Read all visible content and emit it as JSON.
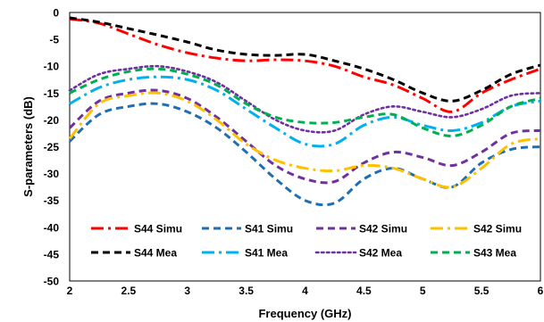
{
  "chart_data": {
    "type": "line",
    "title": "",
    "xlabel": "Frequency (GHz)",
    "ylabel": "S-parameters (dB)",
    "xlim": [
      2,
      6
    ],
    "ylim": [
      -50,
      0
    ],
    "x_ticks": [
      2,
      2.5,
      3,
      3.5,
      4,
      4.5,
      5,
      5.5,
      6
    ],
    "x_tick_labels": [
      "2",
      "2.5",
      "3",
      "3.5",
      "4",
      "4.5",
      "5",
      "5.5",
      "6"
    ],
    "y_ticks": [
      0,
      -5,
      -10,
      -15,
      -20,
      -25,
      -30,
      -35,
      -40,
      -45,
      -50
    ],
    "y_tick_labels": [
      "0",
      "-5",
      "-10",
      "-15",
      "-20",
      "-25",
      "-30",
      "-35",
      "-40",
      "-45",
      "-50"
    ],
    "grid": false,
    "legend_position": "bottom, inside plot, 2 rows x 4 columns",
    "x": [
      2.0,
      2.25,
      2.5,
      2.75,
      3.0,
      3.25,
      3.5,
      3.75,
      4.0,
      4.25,
      4.5,
      4.75,
      5.0,
      5.25,
      5.5,
      5.75,
      6.0
    ],
    "series": [
      {
        "name": "S44 Simu",
        "color": "#ff0000",
        "dash": "dashdot",
        "legend_row": 0,
        "values": [
          -1.2,
          -2.0,
          -4.0,
          -6.0,
          -7.5,
          -8.5,
          -9.0,
          -8.8,
          -9.0,
          -10.0,
          -12.0,
          -13.5,
          -16.0,
          -18.5,
          -15.0,
          -12.5,
          -10.5
        ]
      },
      {
        "name": "S41 Simu",
        "color": "#1f6eb4",
        "dash": "dash",
        "legend_row": 0,
        "values": [
          -24.0,
          -19.0,
          -17.5,
          -17.0,
          -18.5,
          -21.5,
          -26.0,
          -31.0,
          -35.0,
          -35.5,
          -31.0,
          -29.0,
          -31.0,
          -32.5,
          -28.0,
          -25.5,
          -25.0
        ]
      },
      {
        "name": "S42 Simu",
        "color": "#7030a0",
        "dash": "dash",
        "legend_row": 0,
        "values": [
          -21.5,
          -16.5,
          -15.0,
          -14.5,
          -16.0,
          -19.5,
          -24.0,
          -28.5,
          -31.0,
          -31.5,
          -28.0,
          -26.0,
          -27.0,
          -28.5,
          -26.0,
          -22.5,
          -22.0
        ]
      },
      {
        "name": "S42 Simu",
        "color": "#ffc000",
        "dash": "dashdot",
        "legend_row": 0,
        "values": [
          -23.5,
          -17.0,
          -15.5,
          -15.0,
          -16.5,
          -20.0,
          -24.5,
          -27.5,
          -29.0,
          -29.5,
          -28.5,
          -29.0,
          -31.0,
          -32.5,
          -29.0,
          -24.5,
          -23.5
        ]
      },
      {
        "name": "S44 Mea",
        "color": "#000000",
        "dash": "dash",
        "legend_row": 1,
        "values": [
          -1.0,
          -1.8,
          -3.0,
          -4.2,
          -5.5,
          -7.0,
          -7.8,
          -8.0,
          -7.8,
          -9.0,
          -10.5,
          -12.5,
          -15.0,
          -16.5,
          -14.5,
          -11.5,
          -9.8
        ]
      },
      {
        "name": "S41 Mea",
        "color": "#00b0f0",
        "dash": "dashdot",
        "legend_row": 1,
        "values": [
          -17.0,
          -14.0,
          -12.5,
          -12.0,
          -12.5,
          -14.5,
          -18.0,
          -21.5,
          -24.5,
          -24.5,
          -21.0,
          -19.5,
          -21.0,
          -22.0,
          -20.5,
          -17.5,
          -16.5
        ]
      },
      {
        "name": "S42 Mea",
        "color": "#7030a0",
        "dash": "dot",
        "legend_row": 1,
        "values": [
          -14.5,
          -11.5,
          -10.5,
          -10.0,
          -11.0,
          -13.0,
          -16.5,
          -20.0,
          -22.0,
          -22.0,
          -19.0,
          -17.5,
          -18.5,
          -19.5,
          -18.0,
          -15.5,
          -15.0
        ]
      },
      {
        "name": "S43 Mea",
        "color": "#00b050",
        "dash": "dash",
        "legend_row": 1,
        "values": [
          -15.0,
          -12.5,
          -11.0,
          -10.5,
          -11.5,
          -13.5,
          -17.0,
          -19.5,
          -20.5,
          -20.5,
          -19.5,
          -19.0,
          -21.5,
          -23.0,
          -21.0,
          -17.5,
          -16.0
        ]
      }
    ]
  }
}
